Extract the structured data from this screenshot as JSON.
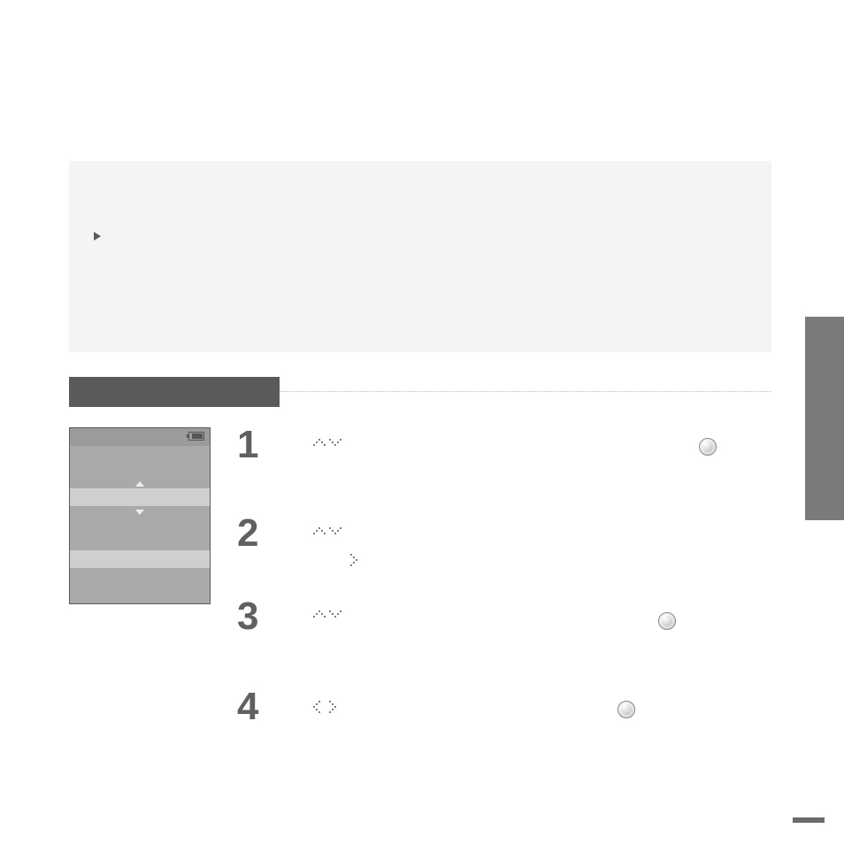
{
  "steps": [
    {
      "num": "1"
    },
    {
      "num": "2"
    },
    {
      "num": "3"
    },
    {
      "num": "4"
    }
  ],
  "colors": {
    "page_bg": "#ffffff",
    "intro_bg": "#f4f4f4",
    "tab_bg": "#5a5a5a",
    "side_tab_bg": "#7a7a7a",
    "device_bg": "#a9a9a9",
    "device_hl": "#cfcfcf",
    "step_num": "#606060"
  }
}
